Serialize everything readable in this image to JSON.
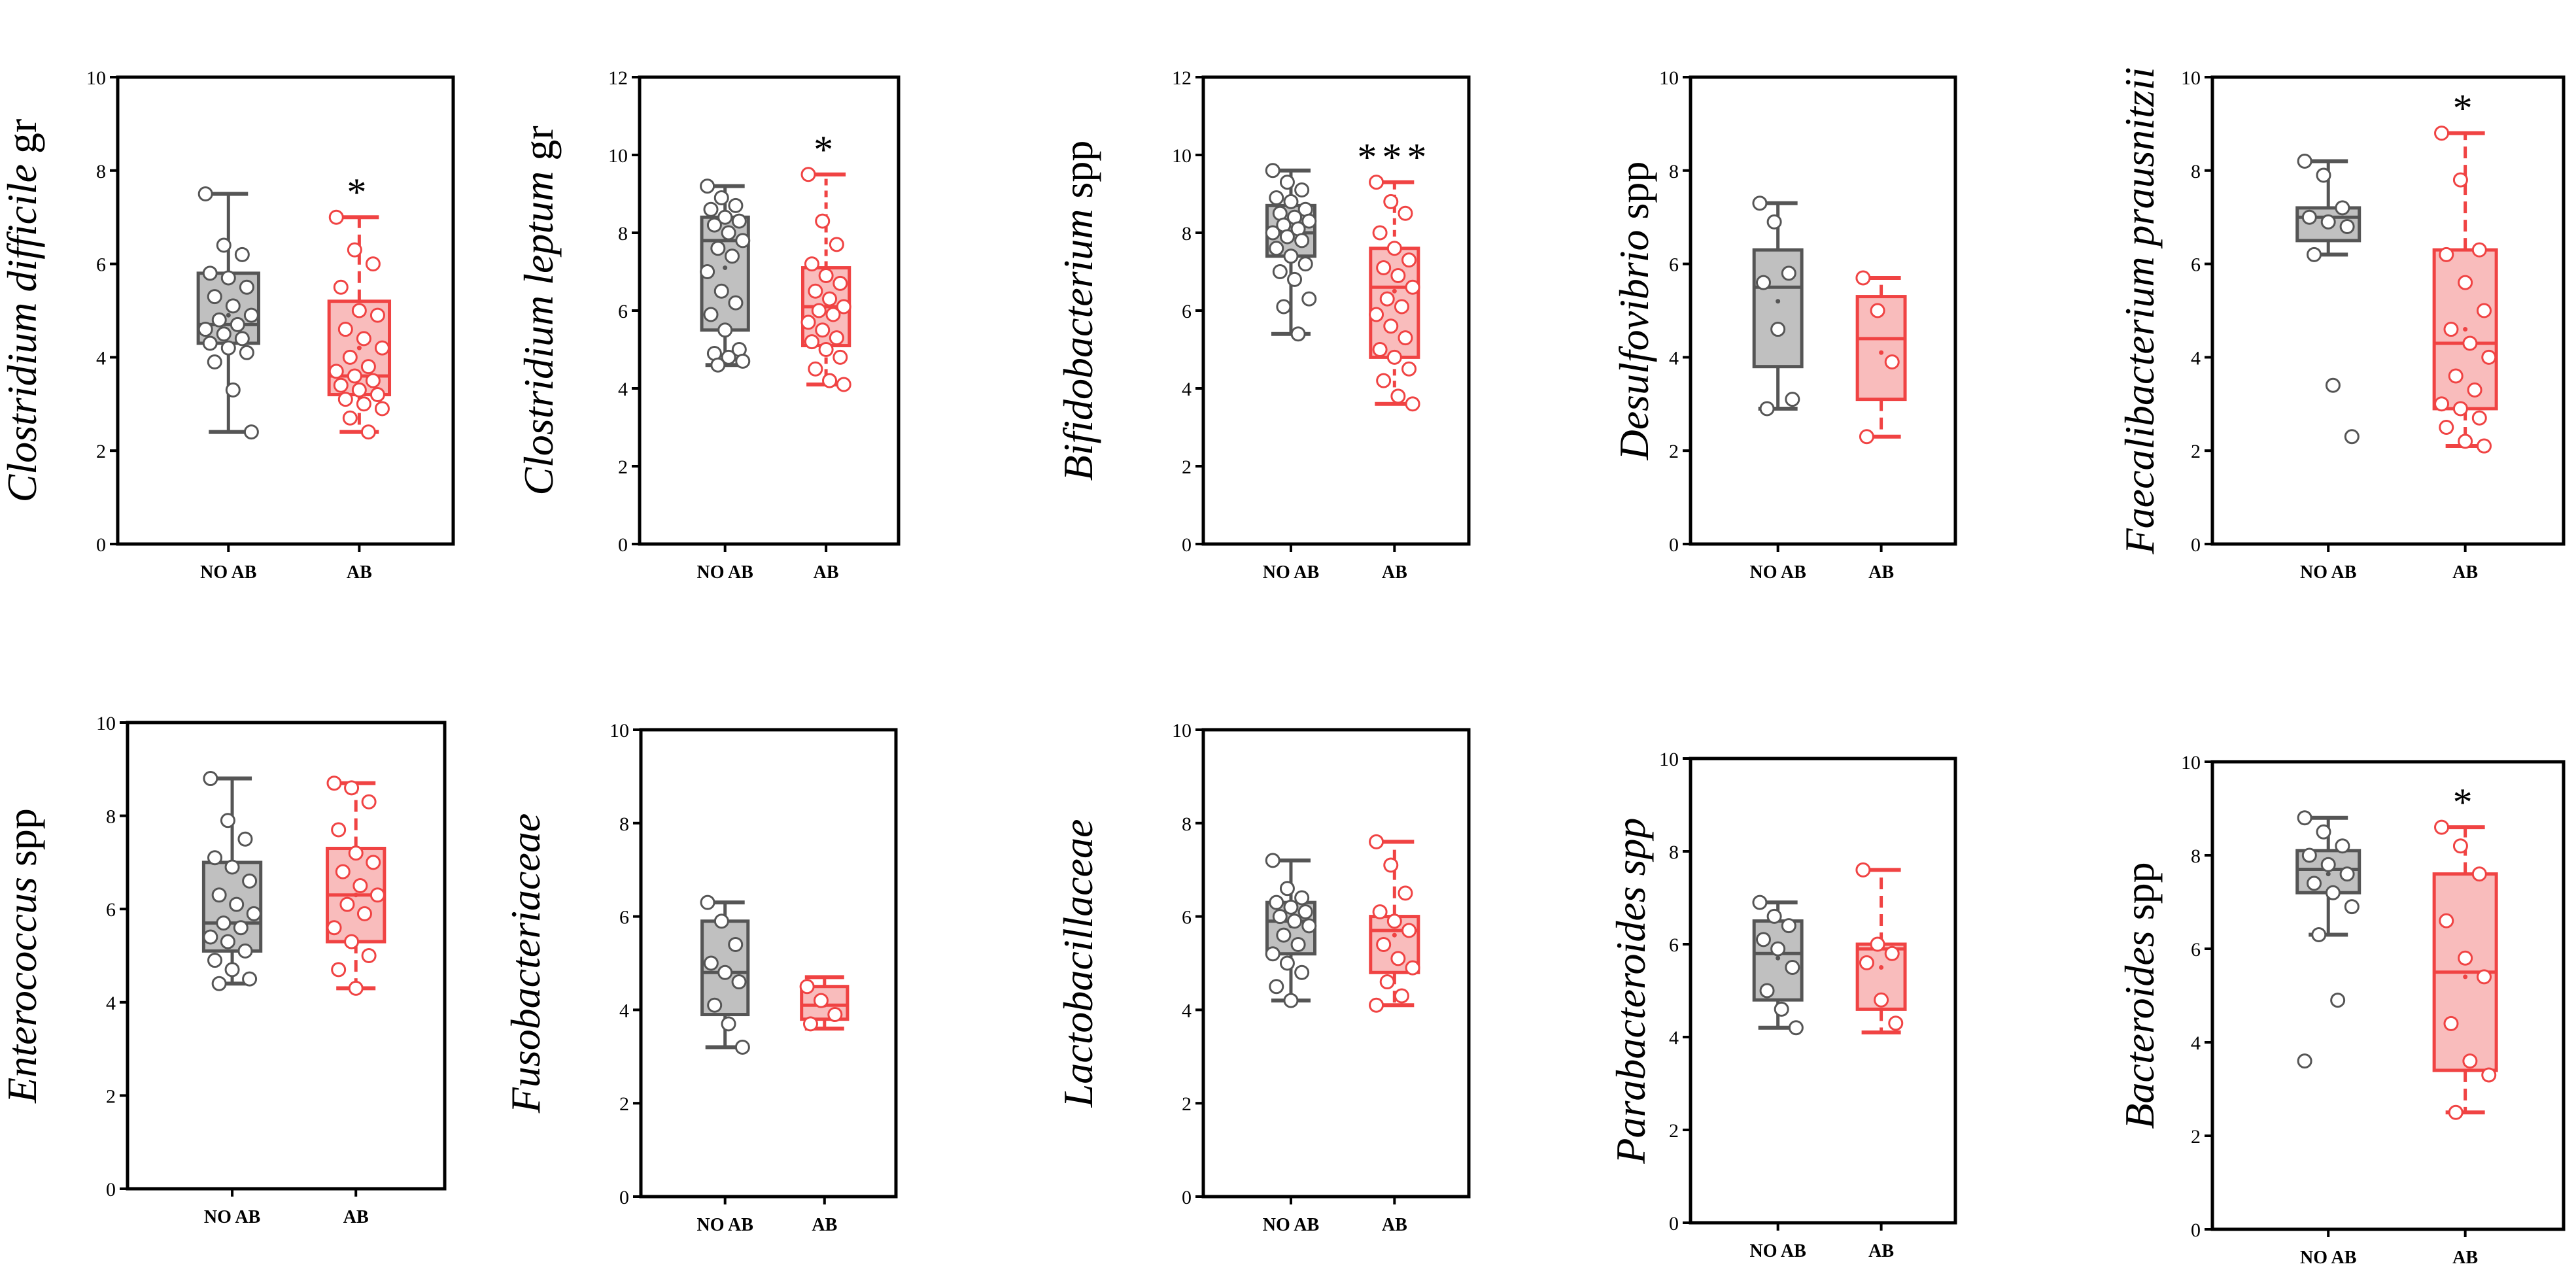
{
  "colors": {
    "no_ab_fill": "#c0c0c0",
    "no_ab_stroke": "#555555",
    "ab_fill": "#f9bcbc",
    "ab_stroke": "#f04343",
    "point_fill": "#ffffff"
  },
  "chart_data": [
    {
      "type": "box",
      "title_parts": [
        {
          "text": "Clostridium difficile",
          "italic": true
        },
        {
          "text": " gr",
          "italic": false
        }
      ],
      "ylim": [
        0,
        10
      ],
      "yticks": [
        0,
        2,
        4,
        6,
        8,
        10
      ],
      "categories": [
        "NO AB",
        "AB"
      ],
      "boxes": [
        {
          "group": "NO AB",
          "whisker_low": 2.4,
          "q1": 4.3,
          "median": 4.7,
          "mean": 4.9,
          "q3": 5.8,
          "whisker_high": 7.5,
          "points": [
            7.5,
            6.4,
            6.2,
            5.8,
            5.7,
            5.5,
            5.3,
            5.1,
            4.9,
            4.8,
            4.7,
            4.6,
            4.5,
            4.4,
            4.3,
            4.2,
            4.1,
            3.9,
            3.3,
            2.4
          ]
        },
        {
          "group": "AB",
          "whisker_low": 2.4,
          "q1": 3.2,
          "median": 3.6,
          "mean": 4.2,
          "q3": 5.2,
          "whisker_high": 7.0,
          "points": [
            7.0,
            6.3,
            6.0,
            5.5,
            5.0,
            4.9,
            4.6,
            4.4,
            4.2,
            4.0,
            3.8,
            3.7,
            3.6,
            3.5,
            3.4,
            3.3,
            3.2,
            3.1,
            3.0,
            2.9,
            2.7,
            2.4
          ]
        }
      ],
      "significance": "*"
    },
    {
      "type": "box",
      "title_parts": [
        {
          "text": "Clostridium leptum",
          "italic": true
        },
        {
          "text": " gr",
          "italic": false
        }
      ],
      "ylim": [
        0,
        12
      ],
      "yticks": [
        0,
        2,
        4,
        6,
        8,
        10,
        12
      ],
      "categories": [
        "NO AB",
        "AB"
      ],
      "boxes": [
        {
          "group": "NO AB",
          "whisker_low": 4.6,
          "q1": 5.5,
          "median": 7.8,
          "mean": 7.1,
          "q3": 8.4,
          "whisker_high": 9.2,
          "points": [
            9.2,
            8.9,
            8.7,
            8.6,
            8.4,
            8.3,
            8.2,
            8.0,
            7.8,
            7.6,
            7.4,
            7.0,
            6.5,
            6.2,
            5.9,
            5.5,
            5.0,
            4.9,
            4.8,
            4.7,
            4.6
          ]
        },
        {
          "group": "AB",
          "whisker_low": 4.1,
          "q1": 5.1,
          "median": 6.1,
          "mean": 6.2,
          "q3": 7.1,
          "whisker_high": 9.5,
          "points": [
            9.5,
            8.3,
            7.7,
            7.2,
            6.9,
            6.7,
            6.5,
            6.3,
            6.1,
            6.0,
            5.9,
            5.7,
            5.5,
            5.3,
            5.2,
            5.0,
            4.8,
            4.5,
            4.2,
            4.1
          ]
        }
      ],
      "significance": "*"
    },
    {
      "type": "box",
      "title_parts": [
        {
          "text": "Bifidobacterium",
          "italic": true
        },
        {
          "text": " spp",
          "italic": false
        }
      ],
      "ylim": [
        0,
        12
      ],
      "yticks": [
        0,
        2,
        4,
        6,
        8,
        10,
        12
      ],
      "categories": [
        "NO AB",
        "AB"
      ],
      "boxes": [
        {
          "group": "NO AB",
          "whisker_low": 5.4,
          "q1": 7.4,
          "median": 8.0,
          "mean": 8.0,
          "q3": 8.7,
          "whisker_high": 9.6,
          "points": [
            9.6,
            9.3,
            9.1,
            8.9,
            8.8,
            8.6,
            8.5,
            8.4,
            8.3,
            8.2,
            8.1,
            8.0,
            7.9,
            7.8,
            7.6,
            7.4,
            7.2,
            7.0,
            6.8,
            6.3,
            6.1,
            5.4
          ]
        },
        {
          "group": "AB",
          "whisker_low": 3.6,
          "q1": 4.8,
          "median": 6.6,
          "mean": 6.5,
          "q3": 7.6,
          "whisker_high": 9.3,
          "points": [
            9.3,
            8.8,
            8.5,
            8.0,
            7.6,
            7.3,
            7.1,
            6.9,
            6.6,
            6.3,
            6.1,
            5.9,
            5.6,
            5.3,
            5.0,
            4.8,
            4.5,
            4.2,
            3.8,
            3.6
          ]
        }
      ],
      "significance": "***"
    },
    {
      "type": "box",
      "title_parts": [
        {
          "text": "Desulfovibrio",
          "italic": true
        },
        {
          "text": " spp",
          "italic": false
        }
      ],
      "ylim": [
        0,
        10
      ],
      "yticks": [
        0,
        2,
        4,
        6,
        8,
        10
      ],
      "categories": [
        "NO AB",
        "AB"
      ],
      "boxes": [
        {
          "group": "NO AB",
          "whisker_low": 2.9,
          "q1": 3.8,
          "median": 5.5,
          "mean": 5.2,
          "q3": 6.3,
          "whisker_high": 7.3,
          "points": [
            7.3,
            6.9,
            5.8,
            5.6,
            4.6,
            3.1,
            2.9
          ]
        },
        {
          "group": "AB",
          "whisker_low": 2.3,
          "q1": 3.1,
          "median": 4.4,
          "mean": 4.1,
          "q3": 5.3,
          "whisker_high": 5.7,
          "points": [
            5.7,
            5.0,
            3.9,
            2.3
          ]
        }
      ],
      "significance": ""
    },
    {
      "type": "box",
      "title_parts": [
        {
          "text": "Faecalibacterium prausnitzii",
          "italic": true
        }
      ],
      "ylim": [
        0,
        10
      ],
      "yticks": [
        0,
        2,
        4,
        6,
        8,
        10
      ],
      "categories": [
        "NO AB",
        "AB"
      ],
      "boxes": [
        {
          "group": "NO AB",
          "whisker_low": 6.2,
          "q1": 6.5,
          "median": 7.0,
          "mean": 6.9,
          "q3": 7.2,
          "whisker_high": 8.2,
          "points": [
            8.2,
            7.9,
            7.2,
            7.0,
            6.9,
            6.8,
            6.2,
            3.4,
            2.3
          ]
        },
        {
          "group": "AB",
          "whisker_low": 2.1,
          "q1": 2.9,
          "median": 4.3,
          "mean": 4.6,
          "q3": 6.3,
          "whisker_high": 8.8,
          "points": [
            8.8,
            7.8,
            6.3,
            6.2,
            5.6,
            5.0,
            4.6,
            4.3,
            4.0,
            3.6,
            3.3,
            3.0,
            2.9,
            2.7,
            2.5,
            2.2,
            2.1
          ]
        }
      ],
      "significance": "*"
    },
    {
      "type": "box",
      "title_parts": [
        {
          "text": "Enterococcus",
          "italic": true
        },
        {
          "text": " spp",
          "italic": false
        }
      ],
      "ylim": [
        0,
        10
      ],
      "yticks": [
        0,
        2,
        4,
        6,
        8,
        10
      ],
      "categories": [
        "NO AB",
        "AB"
      ],
      "boxes": [
        {
          "group": "NO AB",
          "whisker_low": 4.4,
          "q1": 5.1,
          "median": 5.7,
          "mean": 6.1,
          "q3": 7.0,
          "whisker_high": 8.8,
          "points": [
            8.8,
            7.9,
            7.5,
            7.1,
            6.9,
            6.6,
            6.3,
            6.1,
            5.9,
            5.7,
            5.6,
            5.4,
            5.3,
            5.1,
            4.9,
            4.7,
            4.5,
            4.4
          ]
        },
        {
          "group": "AB",
          "whisker_low": 4.3,
          "q1": 5.3,
          "median": 6.3,
          "mean": 6.3,
          "q3": 7.3,
          "whisker_high": 8.7,
          "points": [
            8.7,
            8.6,
            8.3,
            7.7,
            7.2,
            7.0,
            6.8,
            6.5,
            6.3,
            6.1,
            5.9,
            5.6,
            5.3,
            5.0,
            4.7,
            4.3
          ]
        }
      ],
      "significance": ""
    },
    {
      "type": "box",
      "title_parts": [
        {
          "text": "Fusobacteriaceae",
          "italic": true
        }
      ],
      "ylim": [
        0,
        10
      ],
      "yticks": [
        0,
        2,
        4,
        6,
        8,
        10
      ],
      "categories": [
        "NO AB",
        "AB"
      ],
      "boxes": [
        {
          "group": "NO AB",
          "whisker_low": 3.2,
          "q1": 3.9,
          "median": 4.8,
          "mean": 4.8,
          "q3": 5.9,
          "whisker_high": 6.3,
          "points": [
            6.3,
            5.9,
            5.4,
            5.0,
            4.8,
            4.6,
            4.1,
            3.7,
            3.2
          ]
        },
        {
          "group": "AB",
          "whisker_low": 3.6,
          "q1": 3.8,
          "median": 4.1,
          "mean": 4.1,
          "q3": 4.5,
          "whisker_high": 4.7,
          "points": [
            4.5,
            4.2,
            3.9,
            3.7
          ]
        }
      ],
      "significance": ""
    },
    {
      "type": "box",
      "title_parts": [
        {
          "text": "Lactobacillaceae",
          "italic": true
        }
      ],
      "ylim": [
        0,
        10
      ],
      "yticks": [
        0,
        2,
        4,
        6,
        8,
        10
      ],
      "categories": [
        "NO AB",
        "AB"
      ],
      "boxes": [
        {
          "group": "NO AB",
          "whisker_low": 4.2,
          "q1": 5.2,
          "median": 5.9,
          "mean": 5.8,
          "q3": 6.3,
          "whisker_high": 7.2,
          "points": [
            7.2,
            6.6,
            6.4,
            6.3,
            6.2,
            6.1,
            6.0,
            5.9,
            5.8,
            5.6,
            5.4,
            5.2,
            5.0,
            4.8,
            4.5,
            4.2
          ]
        },
        {
          "group": "AB",
          "whisker_low": 4.1,
          "q1": 4.8,
          "median": 5.7,
          "mean": 5.6,
          "q3": 6.0,
          "whisker_high": 7.6,
          "points": [
            7.6,
            7.1,
            6.5,
            6.1,
            5.9,
            5.7,
            5.4,
            5.1,
            4.9,
            4.6,
            4.3,
            4.1
          ]
        }
      ],
      "significance": ""
    },
    {
      "type": "box",
      "title_parts": [
        {
          "text": "Parabacteroides spp",
          "italic": true
        }
      ],
      "ylim": [
        0,
        10
      ],
      "yticks": [
        0,
        2,
        4,
        6,
        8,
        10
      ],
      "categories": [
        "NO AB",
        "AB"
      ],
      "boxes": [
        {
          "group": "NO AB",
          "whisker_low": 4.2,
          "q1": 4.8,
          "median": 5.8,
          "mean": 5.7,
          "q3": 6.5,
          "whisker_high": 6.9,
          "points": [
            6.9,
            6.6,
            6.4,
            6.1,
            5.9,
            5.5,
            5.0,
            4.6,
            4.2
          ]
        },
        {
          "group": "AB",
          "whisker_low": 4.1,
          "q1": 4.6,
          "median": 5.9,
          "mean": 5.5,
          "q3": 6.0,
          "whisker_high": 7.6,
          "points": [
            7.6,
            6.0,
            5.8,
            5.6,
            4.8,
            4.3
          ]
        }
      ],
      "significance": ""
    },
    {
      "type": "box",
      "title_parts": [
        {
          "text": "Bacteroides",
          "italic": true
        },
        {
          "text": " spp",
          "italic": false
        }
      ],
      "ylim": [
        0,
        10
      ],
      "yticks": [
        0,
        2,
        4,
        6,
        8,
        10
      ],
      "categories": [
        "NO AB",
        "AB"
      ],
      "boxes": [
        {
          "group": "NO AB",
          "whisker_low": 6.3,
          "q1": 7.2,
          "median": 7.7,
          "mean": 7.6,
          "q3": 8.1,
          "whisker_high": 8.8,
          "points": [
            8.8,
            8.5,
            8.2,
            8.0,
            7.8,
            7.6,
            7.4,
            7.2,
            6.9,
            6.3,
            4.9,
            3.6
          ]
        },
        {
          "group": "AB",
          "whisker_low": 2.5,
          "q1": 3.4,
          "median": 5.5,
          "mean": 5.4,
          "q3": 7.6,
          "whisker_high": 8.6,
          "points": [
            8.6,
            8.2,
            7.6,
            6.6,
            5.8,
            5.4,
            4.4,
            3.6,
            3.3,
            2.5
          ]
        }
      ],
      "significance": "*"
    }
  ]
}
